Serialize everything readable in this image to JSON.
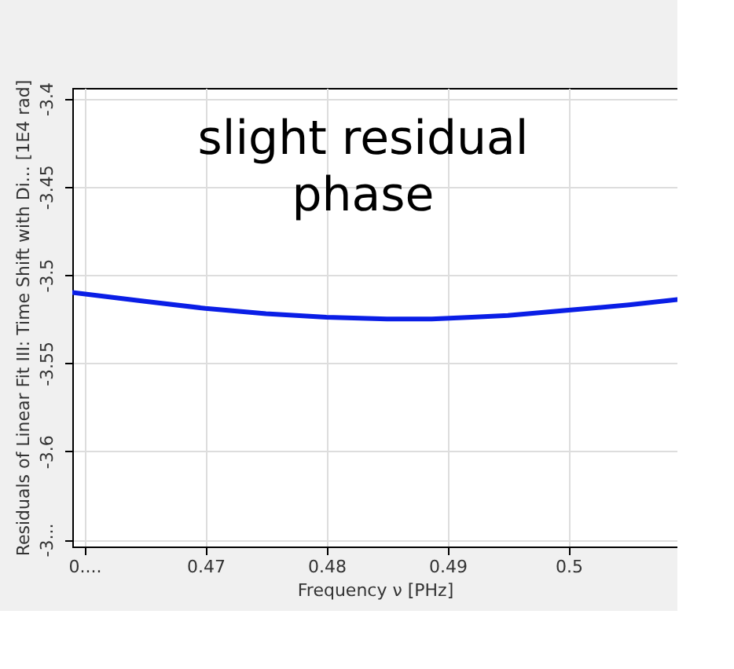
{
  "chart_data": {
    "type": "line",
    "xlabel": "Frequency ν [PHz]",
    "ylabel": "Residuals of Linear Fit III: Time Shift with Di... [1E4 rad]",
    "annotations": [
      "slight residual\nphase"
    ],
    "x": [
      0.459,
      0.465,
      0.47,
      0.475,
      0.48,
      0.485,
      0.4887,
      0.492,
      0.495,
      0.5,
      0.505,
      0.509
    ],
    "series": [
      {
        "color": "#0a1ee6",
        "values": [
          -3.51,
          -3.515,
          -3.519,
          -3.522,
          -3.524,
          -3.525,
          -3.525,
          -3.524,
          -3.523,
          -3.52,
          -3.517,
          -3.514
        ]
      }
    ],
    "xlim": [
      0.459,
      0.509
    ],
    "xticks": [
      {
        "value": 0.46,
        "label": "0...."
      },
      0.47,
      0.48,
      0.49,
      0.5
    ],
    "ylim": [
      -3.654,
      -3.394
    ],
    "yticks": [
      {
        "value": -3.65,
        "label": "-3..."
      },
      -3.6,
      -3.55,
      -3.5,
      -3.45,
      -3.4
    ],
    "grid": true,
    "marker": "none",
    "line_style": "solid"
  }
}
